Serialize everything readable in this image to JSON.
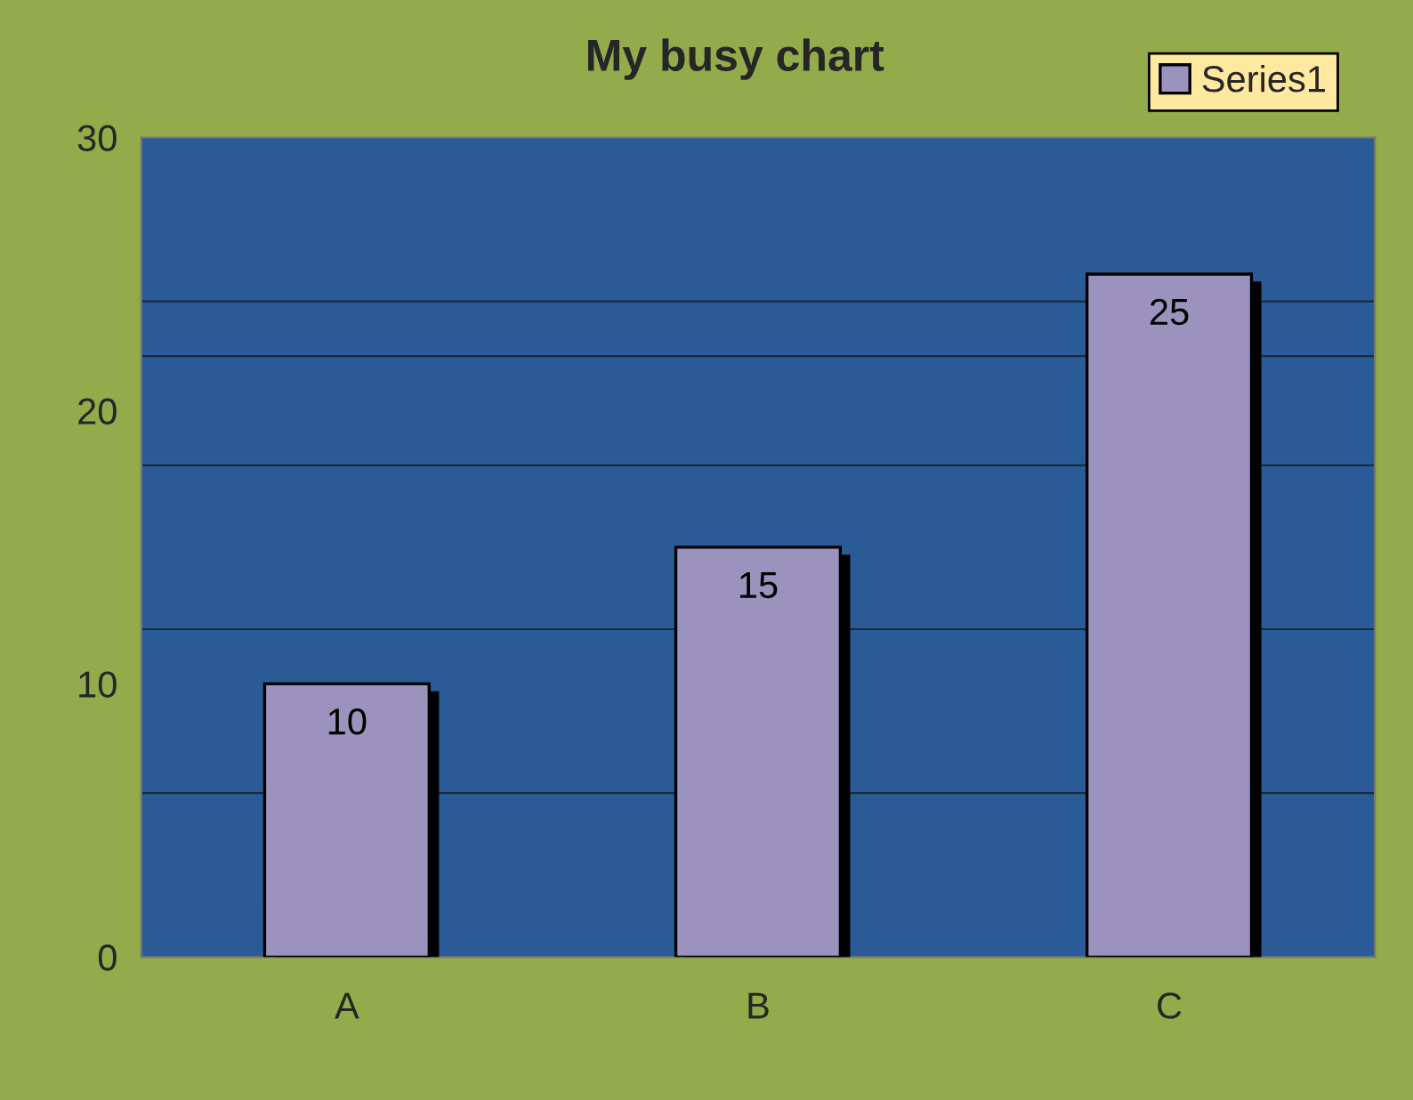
{
  "chart_data": {
    "type": "bar",
    "title": "My busy chart",
    "categories": [
      "A",
      "B",
      "C"
    ],
    "series": [
      {
        "name": "Series1",
        "color": "#9b93bd",
        "values": [
          10,
          15,
          25
        ]
      }
    ],
    "ylim": [
      0,
      30
    ],
    "yticks": [
      0,
      10,
      20,
      30
    ],
    "grid": false,
    "legend": "top right",
    "data_labels": true,
    "ref_lines": [
      {
        "axis": "y",
        "value": 6,
        "color": "#1a2a40"
      },
      {
        "axis": "y",
        "value": 12,
        "color": "#1a2a40"
      },
      {
        "axis": "y",
        "value": 18,
        "color": "#1a2a40"
      },
      {
        "axis": "y",
        "value": 22,
        "color": "#1a2a40"
      },
      {
        "axis": "y",
        "value": 24,
        "color": "#1a2a40"
      }
    ]
  }
}
